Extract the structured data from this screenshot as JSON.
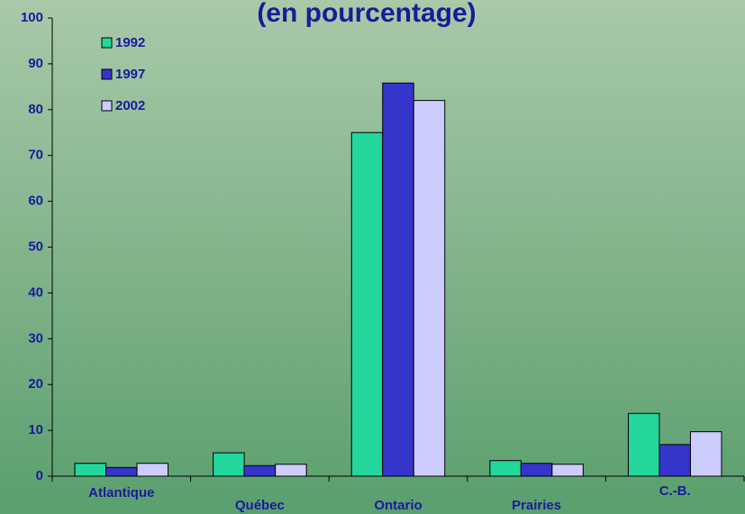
{
  "chart_data": {
    "type": "bar",
    "title": "(en pourcentage)",
    "categories": [
      "Atlantique",
      "Québec",
      "Ontario",
      "Prairies",
      "C.-B."
    ],
    "series": [
      {
        "name": "1992",
        "color": "#22d69c",
        "values": [
          2.8,
          5.1,
          75,
          3.4,
          13.7
        ]
      },
      {
        "name": "1997",
        "color": "#3535cc",
        "values": [
          1.9,
          2.3,
          85.8,
          2.8,
          6.9
        ]
      },
      {
        "name": "2002",
        "color": "#ccccff",
        "values": [
          2.8,
          2.6,
          82,
          2.6,
          9.7
        ]
      }
    ],
    "ylim": [
      0,
      100
    ],
    "yticks": [
      0,
      10,
      20,
      30,
      40,
      50,
      60,
      70,
      80,
      90,
      100
    ],
    "grid": false,
    "legend": "upper left"
  }
}
